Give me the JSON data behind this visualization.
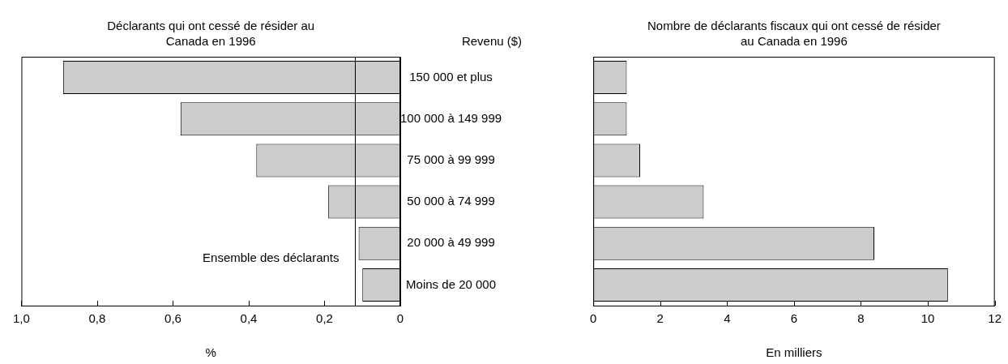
{
  "chart_data": [
    {
      "type": "bar",
      "orientation": "horizontal",
      "title": "Déclarants qui ont cessé de résider au Canada en 1996",
      "xlabel": "%",
      "ylabel": "Revenu ($)",
      "categories": [
        "150 000 et plus",
        "100 000 à 149 999",
        "75 000 à 99 999",
        "50 000 à 74 999",
        "20 000 à 49 999",
        "Moins de 20 000"
      ],
      "values": [
        0.89,
        0.58,
        0.38,
        0.19,
        0.11,
        0.1
      ],
      "color": "#cccccc",
      "xlim": [
        1.0,
        0
      ],
      "xticks": [
        {
          "value": 1.0,
          "label": "1,0"
        },
        {
          "value": 0.8,
          "label": "0,8"
        },
        {
          "value": 0.6,
          "label": "0,6"
        },
        {
          "value": 0.4,
          "label": "0,4"
        },
        {
          "value": 0.2,
          "label": "0,2"
        },
        0
      ],
      "ref_lines": [
        {
          "axis": "x",
          "value": 0.12,
          "label": "Ensemble des déclarants"
        }
      ]
    },
    {
      "type": "bar",
      "orientation": "horizontal",
      "title": "Nombre de déclarants fiscaux qui ont cessé de résider au Canada en 1996",
      "xlabel": "En milliers",
      "categories": [
        null,
        null,
        null,
        null,
        null,
        null
      ],
      "values": [
        1.0,
        1.0,
        1.4,
        3.3,
        8.4,
        10.6
      ],
      "color": "#cccccc",
      "xlim": [
        0,
        12
      ],
      "xticks": [
        0,
        2,
        4,
        6,
        8,
        10,
        12
      ],
      "tick_labels": "x"
    }
  ]
}
